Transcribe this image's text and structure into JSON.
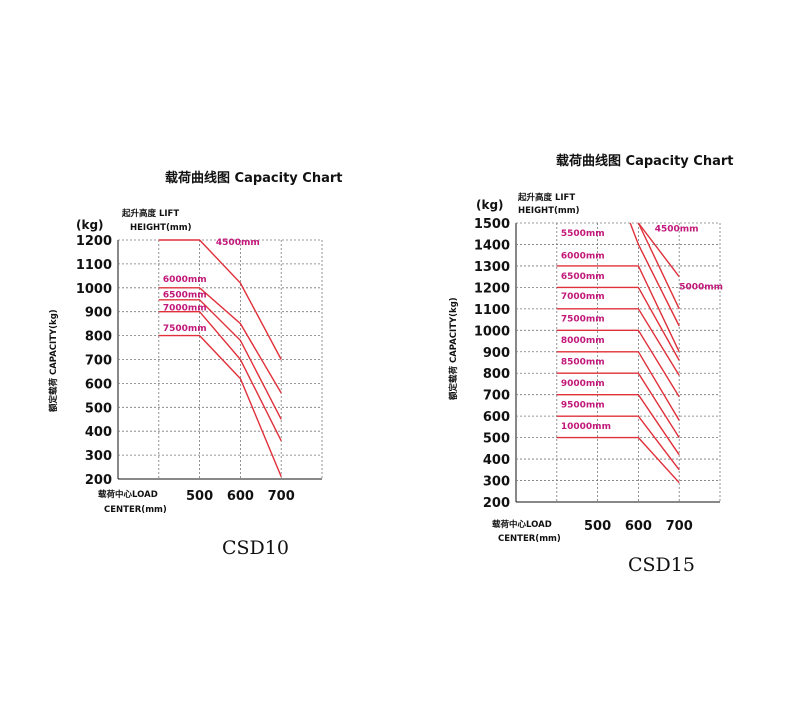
{
  "chart_data": [
    {
      "type": "line",
      "title": "载荷曲线图 Capacity Chart",
      "model": "CSD10",
      "ylabel": "额定载荷 CAPACITY(kg)",
      "yunit": "(kg)",
      "legend_title_1": "起升高度 LIFT",
      "legend_title_2": "HEIGHT(mm)",
      "xlabel_1": "载荷中心LOAD",
      "xlabel_2": "CENTER(mm)",
      "yticks": [
        "1200",
        "1100",
        "1000",
        "900",
        "800",
        "700",
        "600",
        "500",
        "400",
        "300",
        "200"
      ],
      "xticks": [
        "500",
        "600",
        "700"
      ],
      "ylim": [
        200,
        1200
      ],
      "xlim": [
        300,
        800
      ],
      "x_start": 400,
      "series": [
        {
          "name": "4500mm",
          "points": [
            [
              500,
              1200
            ],
            [
              600,
              1020
            ],
            [
              700,
              700
            ]
          ],
          "label_x": 540,
          "label_y": 1180
        },
        {
          "name": "6000mm",
          "points": [
            [
              500,
              1000
            ],
            [
              600,
              850
            ],
            [
              700,
              560
            ]
          ],
          "label_x": 410,
          "label_y": 1025
        },
        {
          "name": "6500mm",
          "points": [
            [
              500,
              950
            ],
            [
              600,
              780
            ],
            [
              700,
              450
            ]
          ],
          "label_x": 410,
          "label_y": 960
        },
        {
          "name": "7000mm",
          "points": [
            [
              500,
              900
            ],
            [
              600,
              700
            ],
            [
              700,
              360
            ]
          ],
          "label_x": 410,
          "label_y": 905
        },
        {
          "name": "7500mm",
          "points": [
            [
              500,
              800
            ],
            [
              600,
              620
            ],
            [
              700,
              210
            ]
          ],
          "label_x": 410,
          "label_y": 820
        }
      ]
    },
    {
      "type": "line",
      "title": "载荷曲线图 Capacity Chart",
      "model": "CSD15",
      "ylabel": "额定载荷 CAPACITY(kg)",
      "yunit": "(kg)",
      "legend_title_1": "起升高度 LIFT",
      "legend_title_2": "HEIGHT(mm)",
      "xlabel_1": "载荷中心LOAD",
      "xlabel_2": "CENTER(mm)",
      "yticks": [
        "1500",
        "1400",
        "1300",
        "1200",
        "1100",
        "1000",
        "900",
        "800",
        "700",
        "600",
        "500",
        "400",
        "300",
        "200"
      ],
      "xticks": [
        "500",
        "600",
        "700"
      ],
      "ylim": [
        200,
        1500
      ],
      "xlim": [
        300,
        800
      ],
      "x_start": 400,
      "series": [
        {
          "name": "4500mm",
          "points": [
            [
              600,
              1500
            ],
            [
              700,
              1250
            ]
          ],
          "label_x": 640,
          "label_y": 1460
        },
        {
          "name": "5000mm",
          "points": [
            [
              600,
              1500
            ],
            [
              700,
              1100
            ]
          ],
          "label_x": 700,
          "label_y": 1190
        },
        {
          "name": "5500mm",
          "points": [
            [
              580,
              1500
            ],
            [
              600,
              1400
            ],
            [
              700,
              1020
            ]
          ],
          "label_x": 410,
          "label_y": 1440
        },
        {
          "name": "6000mm",
          "points": [
            [
              600,
              1300
            ],
            [
              700,
              900
            ]
          ],
          "label_x": 410,
          "label_y": 1335
        },
        {
          "name": "6500mm",
          "points": [
            [
              600,
              1200
            ],
            [
              700,
              860
            ]
          ],
          "label_x": 410,
          "label_y": 1240
        },
        {
          "name": "7000mm",
          "points": [
            [
              600,
              1100
            ],
            [
              700,
              790
            ]
          ],
          "label_x": 410,
          "label_y": 1145
        },
        {
          "name": "7500mm",
          "points": [
            [
              600,
              1000
            ],
            [
              700,
              690
            ]
          ],
          "label_x": 410,
          "label_y": 1040
        },
        {
          "name": "8000mm",
          "points": [
            [
              600,
              900
            ],
            [
              700,
              580
            ]
          ],
          "label_x": 410,
          "label_y": 940
        },
        {
          "name": "8500mm",
          "points": [
            [
              600,
              800
            ],
            [
              700,
              500
            ]
          ],
          "label_x": 410,
          "label_y": 840
        },
        {
          "name": "9000mm",
          "points": [
            [
              600,
              700
            ],
            [
              700,
              420
            ]
          ],
          "label_x": 410,
          "label_y": 740
        },
        {
          "name": "9500mm",
          "points": [
            [
              600,
              600
            ],
            [
              700,
              350
            ]
          ],
          "label_x": 410,
          "label_y": 640
        },
        {
          "name": "10000mm",
          "points": [
            [
              600,
              500
            ],
            [
              700,
              290
            ]
          ],
          "label_x": 410,
          "label_y": 540
        }
      ]
    }
  ]
}
